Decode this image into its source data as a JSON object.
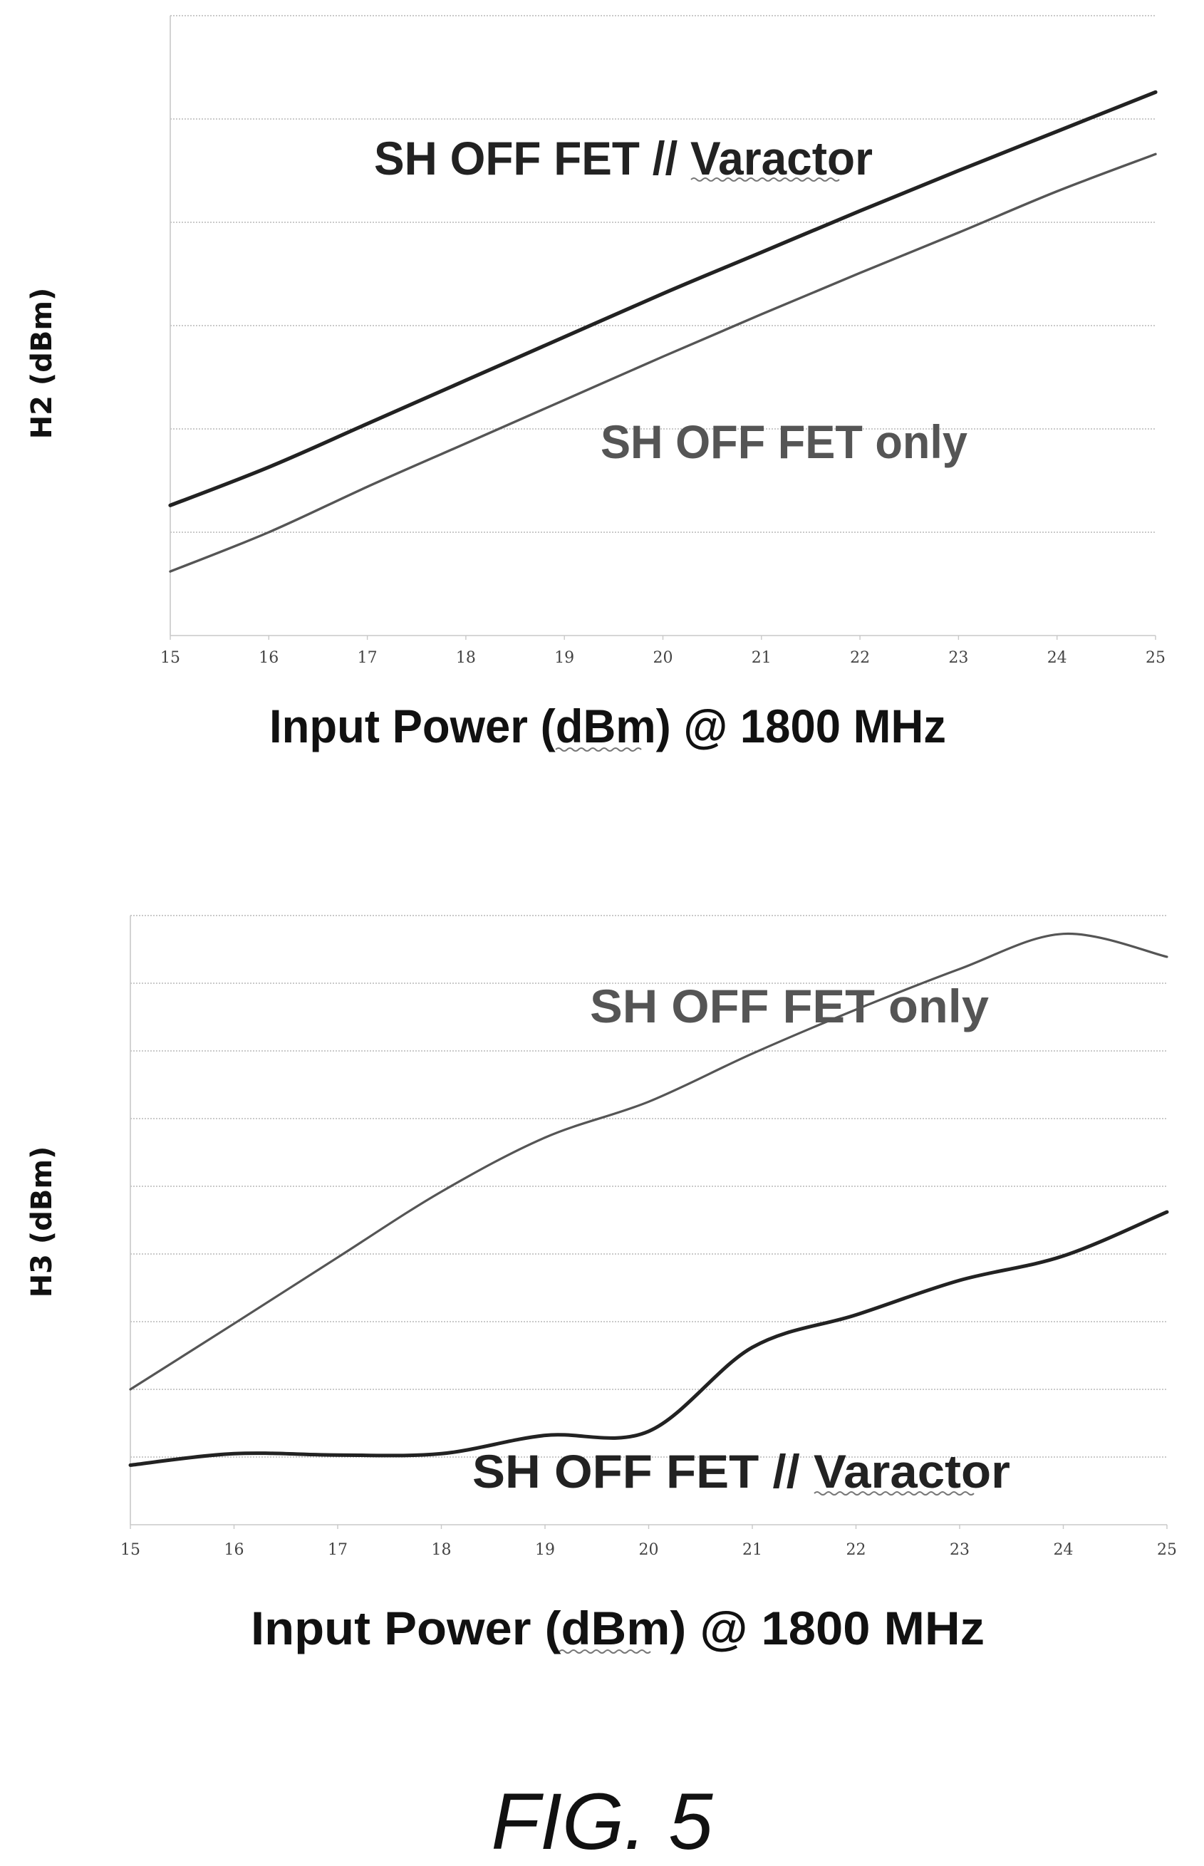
{
  "figure_label": "FIG. 5",
  "chart_data": [
    {
      "type": "line",
      "title": "",
      "xlabel": "Input Power (dBm) @ 1800 MHz",
      "ylabel": "H2 (dBm)",
      "x": [
        15,
        16,
        17,
        18,
        19,
        20,
        21,
        22,
        23,
        24,
        25
      ],
      "xlim": [
        15,
        25
      ],
      "ylim": [
        0,
        6
      ],
      "y_tick_labels_shown": false,
      "grid": true,
      "series": [
        {
          "name": "SH OFF FET // Varactor",
          "color": "#222222",
          "values": [
            1.26,
            1.63,
            2.05,
            2.47,
            2.89,
            3.31,
            3.71,
            4.11,
            4.5,
            4.88,
            5.26
          ]
        },
        {
          "name": "SH OFF FET only",
          "color": "#555555",
          "values": [
            0.62,
            1.0,
            1.44,
            1.86,
            2.28,
            2.7,
            3.11,
            3.51,
            3.9,
            4.3,
            4.66
          ]
        }
      ]
    },
    {
      "type": "line",
      "title": "",
      "xlabel": "Input Power (dBm) @ 1800 MHz",
      "ylabel": "H3 (dBm)",
      "x": [
        15,
        16,
        17,
        18,
        19,
        20,
        21,
        22,
        23,
        24,
        25
      ],
      "xlim": [
        15,
        25
      ],
      "ylim": [
        0,
        9
      ],
      "y_tick_labels_shown": false,
      "grid": true,
      "series": [
        {
          "name": "SH OFF FET only",
          "color": "#555555",
          "values": [
            2.0,
            2.97,
            3.95,
            4.92,
            5.72,
            6.25,
            6.96,
            7.61,
            8.21,
            8.73,
            8.39
          ]
        },
        {
          "name": "SH OFF FET // Varactor",
          "color": "#222222",
          "values": [
            0.88,
            1.05,
            1.03,
            1.05,
            1.32,
            1.38,
            2.62,
            3.1,
            3.61,
            3.97,
            4.62
          ]
        }
      ]
    }
  ]
}
